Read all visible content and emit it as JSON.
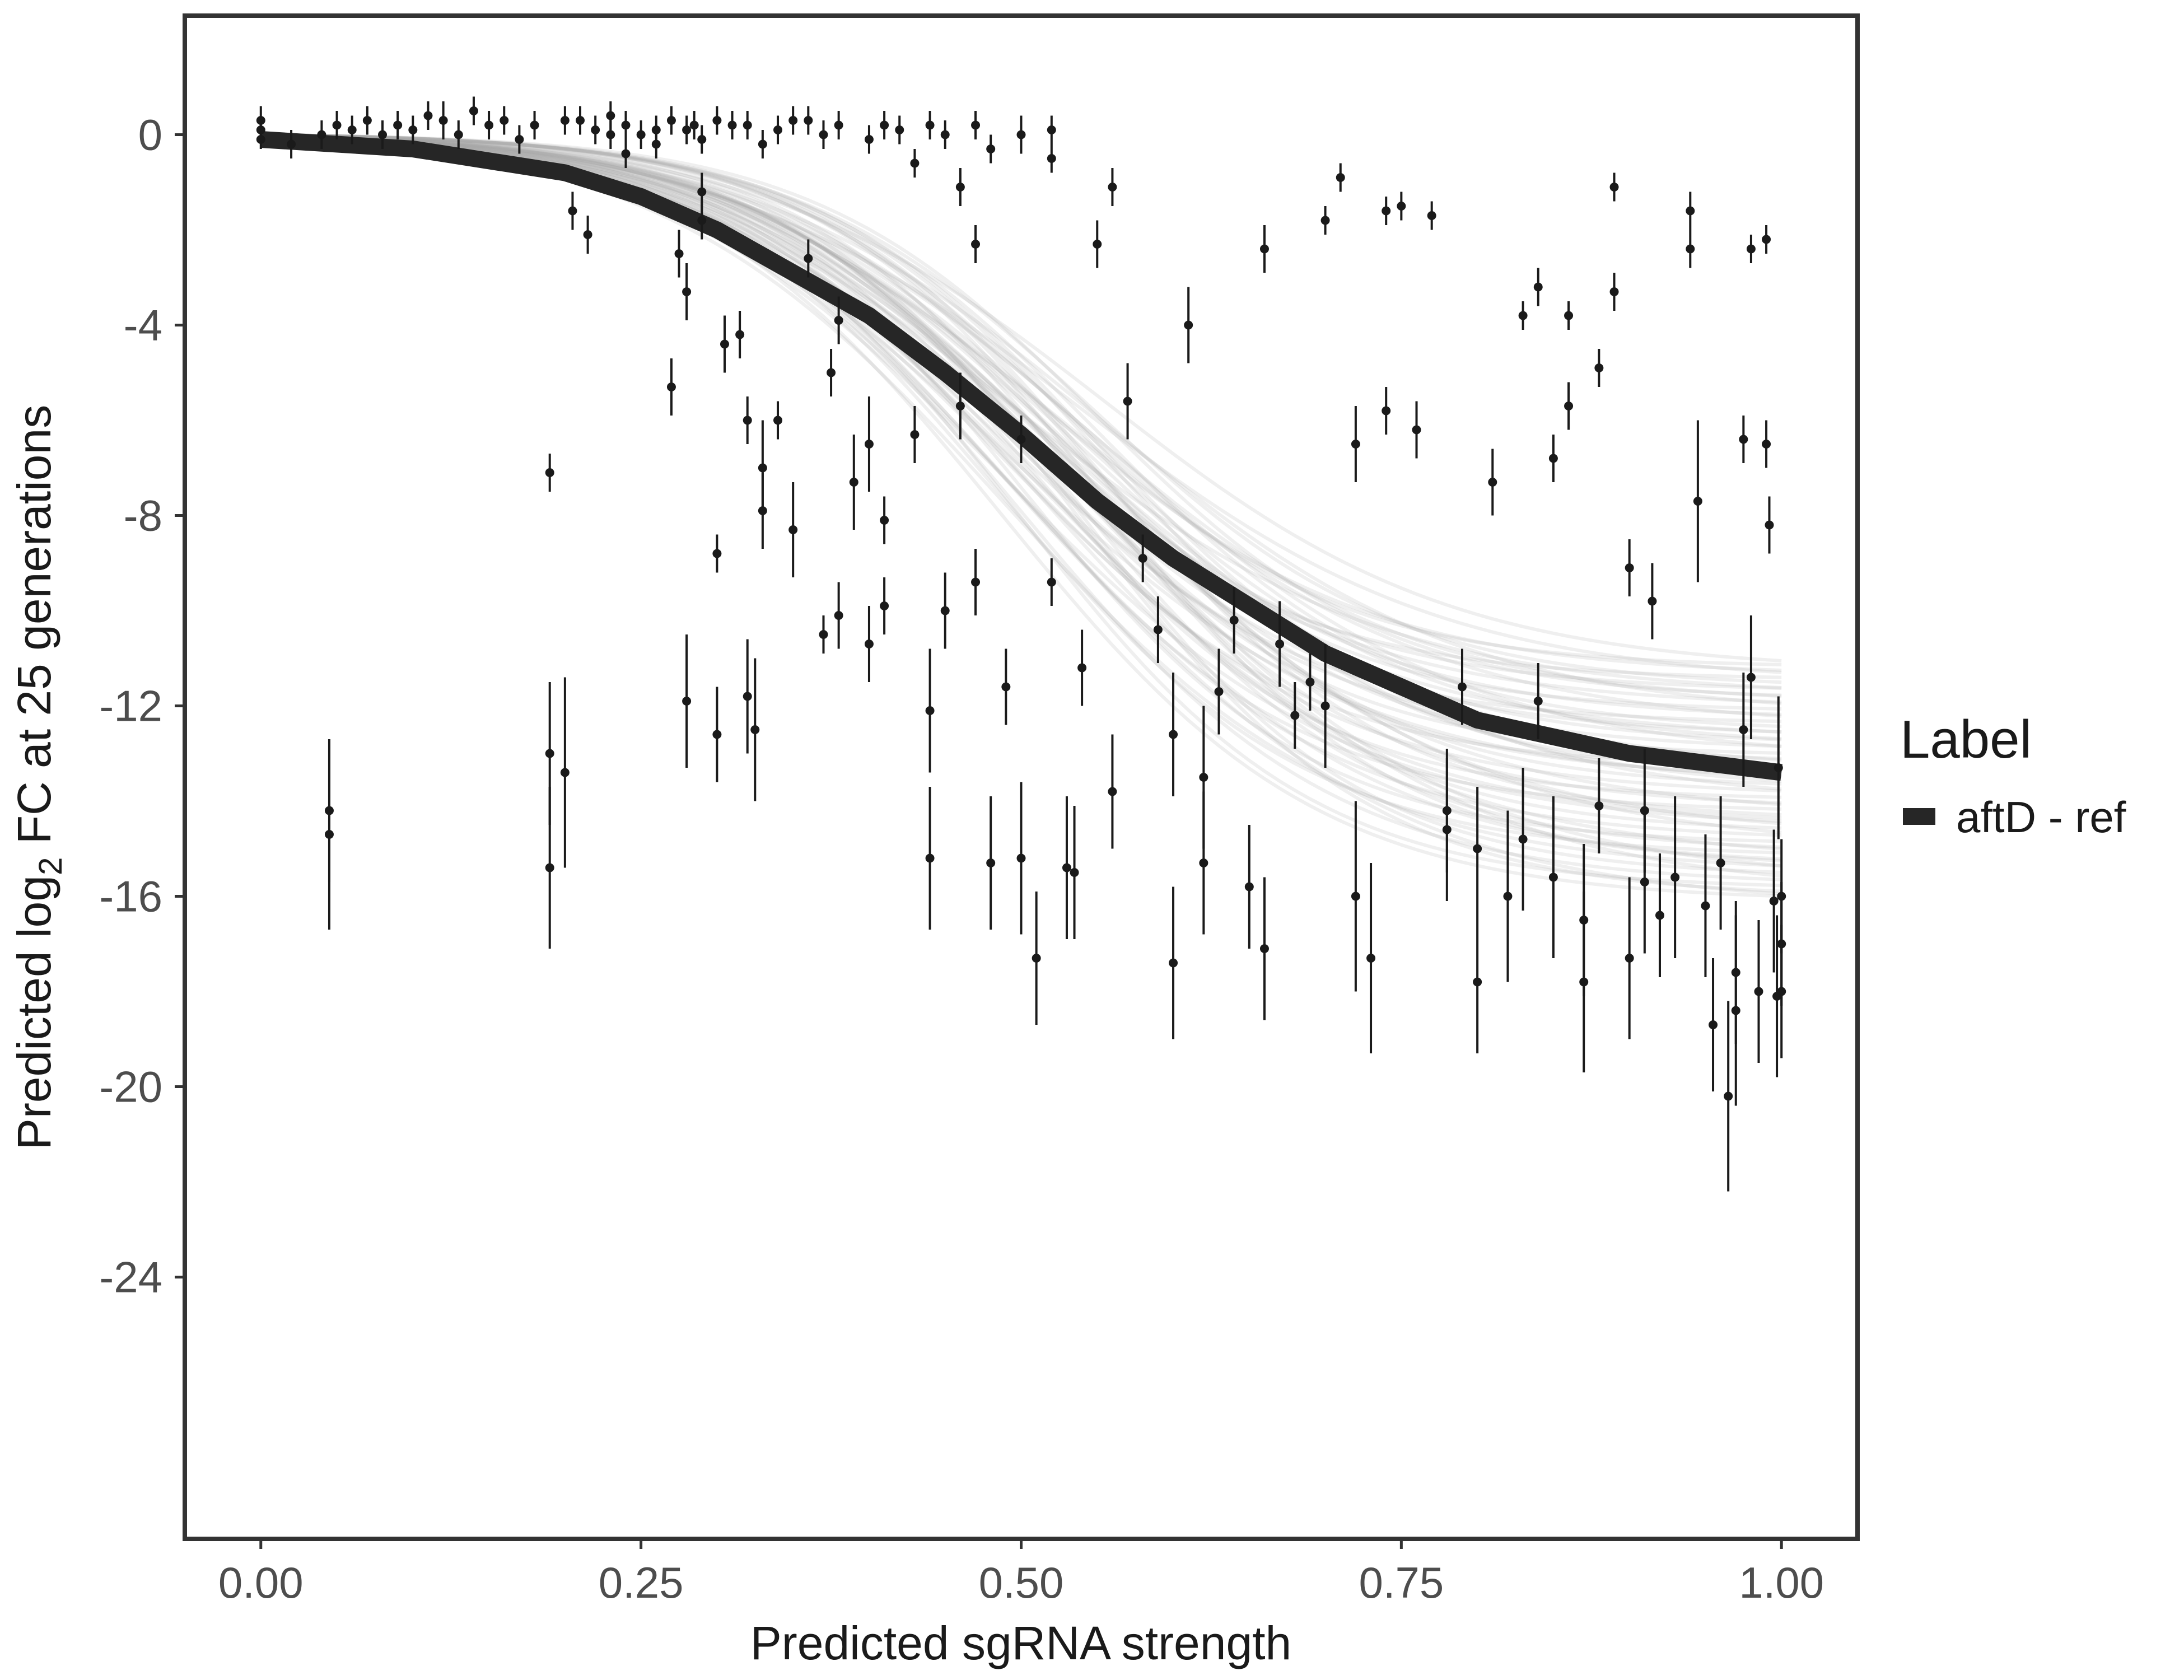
{
  "chart_data": {
    "type": "scatter",
    "title": "",
    "xlabel": "Predicted sgRNA strength",
    "ylabel_parts": {
      "prefix": "Predicted  log",
      "subscript": "2",
      "suffix": " FC at 25 generations"
    },
    "xlim": [
      -0.05,
      1.05
    ],
    "ylim": [
      -29.5,
      2.5
    ],
    "x_ticks": [
      0,
      0.25,
      0.5,
      0.75,
      1.0
    ],
    "x_tick_labels": [
      "0.00",
      "0.25",
      "0.50",
      "0.75",
      "1.00"
    ],
    "y_ticks": [
      0,
      -4,
      -8,
      -12,
      -16,
      -20,
      -24
    ],
    "y_tick_labels": [
      "0",
      "-4",
      "-8",
      "-12",
      "-16",
      "-20",
      "-24"
    ],
    "grid": false,
    "legend": {
      "title": "Label",
      "position": "right",
      "entries": [
        {
          "label": "aftD - ref",
          "color": "#262626"
        }
      ]
    },
    "fit_curve": {
      "name": "aftD - ref",
      "model": "logistic",
      "bottom": -13.9,
      "midpoint": 0.52,
      "slope": 9.5,
      "x": [
        0.0,
        0.1,
        0.2,
        0.25,
        0.3,
        0.4,
        0.45,
        0.5,
        0.55,
        0.6,
        0.7,
        0.75,
        0.8,
        0.9,
        1.0
      ],
      "y": [
        -0.1,
        -0.3,
        -0.8,
        -1.3,
        -2.0,
        -3.8,
        -5.0,
        -6.3,
        -7.7,
        -8.9,
        -10.9,
        -11.6,
        -12.3,
        -13.0,
        -13.4
      ]
    },
    "posterior_band": {
      "n_draws": 60,
      "bottom_range": [
        -11.2,
        -16.2
      ],
      "color": "#a6a6a6"
    },
    "points": [
      {
        "x": 0.0,
        "y": 0.3,
        "e": 0.3
      },
      {
        "x": 0.0,
        "y": 0.1,
        "e": 0.2
      },
      {
        "x": 0.0,
        "y": -0.1,
        "e": 0.2
      },
      {
        "x": 0.02,
        "y": -0.2,
        "e": 0.3
      },
      {
        "x": 0.04,
        "y": 0.0,
        "e": 0.3
      },
      {
        "x": 0.045,
        "y": -14.2,
        "e": 1.5
      },
      {
        "x": 0.045,
        "y": -14.7,
        "e": 2.0
      },
      {
        "x": 0.05,
        "y": 0.2,
        "e": 0.3
      },
      {
        "x": 0.06,
        "y": 0.1,
        "e": 0.3
      },
      {
        "x": 0.07,
        "y": 0.3,
        "e": 0.3
      },
      {
        "x": 0.08,
        "y": 0.0,
        "e": 0.3
      },
      {
        "x": 0.09,
        "y": 0.2,
        "e": 0.3
      },
      {
        "x": 0.1,
        "y": 0.1,
        "e": 0.3
      },
      {
        "x": 0.11,
        "y": 0.4,
        "e": 0.3
      },
      {
        "x": 0.12,
        "y": 0.3,
        "e": 0.4
      },
      {
        "x": 0.13,
        "y": 0.0,
        "e": 0.3
      },
      {
        "x": 0.14,
        "y": 0.5,
        "e": 0.3
      },
      {
        "x": 0.15,
        "y": 0.2,
        "e": 0.3
      },
      {
        "x": 0.16,
        "y": 0.3,
        "e": 0.3
      },
      {
        "x": 0.17,
        "y": -0.1,
        "e": 0.3
      },
      {
        "x": 0.18,
        "y": 0.2,
        "e": 0.3
      },
      {
        "x": 0.19,
        "y": -7.1,
        "e": 0.4
      },
      {
        "x": 0.19,
        "y": -13.0,
        "e": 1.5
      },
      {
        "x": 0.19,
        "y": -15.4,
        "e": 1.7
      },
      {
        "x": 0.2,
        "y": -13.4,
        "e": 2.0
      },
      {
        "x": 0.2,
        "y": 0.3,
        "e": 0.3
      },
      {
        "x": 0.205,
        "y": -1.6,
        "e": 0.4
      },
      {
        "x": 0.21,
        "y": 0.3,
        "e": 0.3
      },
      {
        "x": 0.215,
        "y": -2.1,
        "e": 0.4
      },
      {
        "x": 0.22,
        "y": 0.1,
        "e": 0.3
      },
      {
        "x": 0.23,
        "y": 0.4,
        "e": 0.3
      },
      {
        "x": 0.24,
        "y": -0.4,
        "e": 0.3
      },
      {
        "x": 0.26,
        "y": 0.1,
        "e": 0.3
      },
      {
        "x": 0.27,
        "y": -5.3,
        "e": 0.6
      },
      {
        "x": 0.275,
        "y": -2.5,
        "e": 0.5
      },
      {
        "x": 0.28,
        "y": -3.3,
        "e": 0.6
      },
      {
        "x": 0.28,
        "y": -11.9,
        "e": 1.4
      },
      {
        "x": 0.285,
        "y": 0.2,
        "e": 0.3
      },
      {
        "x": 0.29,
        "y": -1.2,
        "e": 0.4
      },
      {
        "x": 0.29,
        "y": -1.8,
        "e": 0.4
      },
      {
        "x": 0.3,
        "y": -8.8,
        "e": 0.4
      },
      {
        "x": 0.3,
        "y": -12.6,
        "e": 1.0
      },
      {
        "x": 0.305,
        "y": -4.4,
        "e": 0.6
      },
      {
        "x": 0.31,
        "y": 0.2,
        "e": 0.3
      },
      {
        "x": 0.315,
        "y": -4.2,
        "e": 0.5
      },
      {
        "x": 0.32,
        "y": -6.0,
        "e": 0.5
      },
      {
        "x": 0.32,
        "y": -11.8,
        "e": 1.2
      },
      {
        "x": 0.325,
        "y": -12.5,
        "e": 1.5
      },
      {
        "x": 0.33,
        "y": -7.0,
        "e": 1.0
      },
      {
        "x": 0.33,
        "y": -7.9,
        "e": 0.8
      },
      {
        "x": 0.34,
        "y": -6.0,
        "e": 0.4
      },
      {
        "x": 0.35,
        "y": -8.3,
        "e": 1.0
      },
      {
        "x": 0.36,
        "y": 0.3,
        "e": 0.3
      },
      {
        "x": 0.36,
        "y": -2.6,
        "e": 0.4
      },
      {
        "x": 0.37,
        "y": -10.5,
        "e": 0.4
      },
      {
        "x": 0.375,
        "y": -5.0,
        "e": 0.5
      },
      {
        "x": 0.38,
        "y": -3.9,
        "e": 0.5
      },
      {
        "x": 0.38,
        "y": -10.1,
        "e": 0.7
      },
      {
        "x": 0.39,
        "y": -7.3,
        "e": 1.0
      },
      {
        "x": 0.4,
        "y": -6.5,
        "e": 1.0
      },
      {
        "x": 0.4,
        "y": -10.7,
        "e": 0.8
      },
      {
        "x": 0.41,
        "y": -8.1,
        "e": 0.5
      },
      {
        "x": 0.41,
        "y": -9.9,
        "e": 0.6
      },
      {
        "x": 0.42,
        "y": 0.1,
        "e": 0.3
      },
      {
        "x": 0.43,
        "y": -6.3,
        "e": 0.6
      },
      {
        "x": 0.44,
        "y": -12.1,
        "e": 1.3
      },
      {
        "x": 0.44,
        "y": -15.2,
        "e": 1.5
      },
      {
        "x": 0.45,
        "y": -10.0,
        "e": 0.8
      },
      {
        "x": 0.46,
        "y": -1.1,
        "e": 0.4
      },
      {
        "x": 0.46,
        "y": -5.7,
        "e": 0.7
      },
      {
        "x": 0.47,
        "y": -2.3,
        "e": 0.4
      },
      {
        "x": 0.47,
        "y": -9.4,
        "e": 0.7
      },
      {
        "x": 0.48,
        "y": -15.3,
        "e": 1.4
      },
      {
        "x": 0.49,
        "y": -11.6,
        "e": 0.8
      },
      {
        "x": 0.5,
        "y": -6.4,
        "e": 0.5
      },
      {
        "x": 0.5,
        "y": -15.2,
        "e": 1.6
      },
      {
        "x": 0.51,
        "y": -17.3,
        "e": 1.4
      },
      {
        "x": 0.52,
        "y": -9.4,
        "e": 0.5
      },
      {
        "x": 0.52,
        "y": 0.1,
        "e": 0.3
      },
      {
        "x": 0.53,
        "y": -15.4,
        "e": 1.5
      },
      {
        "x": 0.535,
        "y": -15.5,
        "e": 1.4
      },
      {
        "x": 0.54,
        "y": -11.2,
        "e": 0.8
      },
      {
        "x": 0.55,
        "y": -2.3,
        "e": 0.5
      },
      {
        "x": 0.56,
        "y": -1.1,
        "e": 0.4
      },
      {
        "x": 0.56,
        "y": -13.8,
        "e": 1.2
      },
      {
        "x": 0.57,
        "y": -5.6,
        "e": 0.8
      },
      {
        "x": 0.58,
        "y": -8.9,
        "e": 0.5
      },
      {
        "x": 0.59,
        "y": -10.4,
        "e": 0.7
      },
      {
        "x": 0.6,
        "y": -12.6,
        "e": 1.3
      },
      {
        "x": 0.6,
        "y": -17.4,
        "e": 1.6
      },
      {
        "x": 0.61,
        "y": -4.0,
        "e": 0.8
      },
      {
        "x": 0.62,
        "y": -13.5,
        "e": 1.5
      },
      {
        "x": 0.62,
        "y": -15.3,
        "e": 1.5
      },
      {
        "x": 0.63,
        "y": -11.7,
        "e": 0.9
      },
      {
        "x": 0.64,
        "y": -10.2,
        "e": 0.7
      },
      {
        "x": 0.65,
        "y": -15.8,
        "e": 1.3
      },
      {
        "x": 0.66,
        "y": -2.4,
        "e": 0.5
      },
      {
        "x": 0.66,
        "y": -17.1,
        "e": 1.5
      },
      {
        "x": 0.67,
        "y": -10.7,
        "e": 0.9
      },
      {
        "x": 0.68,
        "y": -12.2,
        "e": 0.7
      },
      {
        "x": 0.69,
        "y": -11.5,
        "e": 0.6
      },
      {
        "x": 0.7,
        "y": -1.8,
        "e": 0.3
      },
      {
        "x": 0.7,
        "y": -12.0,
        "e": 1.3
      },
      {
        "x": 0.71,
        "y": -0.9,
        "e": 0.3
      },
      {
        "x": 0.72,
        "y": -6.5,
        "e": 0.8
      },
      {
        "x": 0.72,
        "y": -16.0,
        "e": 2.0
      },
      {
        "x": 0.73,
        "y": -17.3,
        "e": 2.0
      },
      {
        "x": 0.74,
        "y": -5.8,
        "e": 0.5
      },
      {
        "x": 0.74,
        "y": -1.6,
        "e": 0.3
      },
      {
        "x": 0.75,
        "y": -1.5,
        "e": 0.3
      },
      {
        "x": 0.76,
        "y": -6.2,
        "e": 0.6
      },
      {
        "x": 0.77,
        "y": -1.7,
        "e": 0.3
      },
      {
        "x": 0.78,
        "y": -14.2,
        "e": 1.3
      },
      {
        "x": 0.78,
        "y": -14.6,
        "e": 1.5
      },
      {
        "x": 0.79,
        "y": -11.6,
        "e": 0.8
      },
      {
        "x": 0.8,
        "y": -15.0,
        "e": 1.3
      },
      {
        "x": 0.8,
        "y": -17.8,
        "e": 1.5
      },
      {
        "x": 0.81,
        "y": -7.3,
        "e": 0.7
      },
      {
        "x": 0.82,
        "y": -16.0,
        "e": 1.8
      },
      {
        "x": 0.83,
        "y": -3.8,
        "e": 0.3
      },
      {
        "x": 0.83,
        "y": -14.8,
        "e": 1.5
      },
      {
        "x": 0.84,
        "y": -3.2,
        "e": 0.4
      },
      {
        "x": 0.84,
        "y": -11.9,
        "e": 0.8
      },
      {
        "x": 0.85,
        "y": -6.8,
        "e": 0.5
      },
      {
        "x": 0.85,
        "y": -15.6,
        "e": 1.7
      },
      {
        "x": 0.86,
        "y": -3.8,
        "e": 0.3
      },
      {
        "x": 0.86,
        "y": -5.7,
        "e": 0.5
      },
      {
        "x": 0.87,
        "y": -16.5,
        "e": 1.6
      },
      {
        "x": 0.87,
        "y": -17.8,
        "e": 1.9
      },
      {
        "x": 0.88,
        "y": -4.9,
        "e": 0.4
      },
      {
        "x": 0.88,
        "y": -14.1,
        "e": 1.0
      },
      {
        "x": 0.89,
        "y": -1.1,
        "e": 0.3
      },
      {
        "x": 0.89,
        "y": -3.3,
        "e": 0.4
      },
      {
        "x": 0.9,
        "y": -9.1,
        "e": 0.6
      },
      {
        "x": 0.9,
        "y": -17.3,
        "e": 1.7
      },
      {
        "x": 0.91,
        "y": -14.2,
        "e": 1.3
      },
      {
        "x": 0.91,
        "y": -15.7,
        "e": 1.5
      },
      {
        "x": 0.915,
        "y": -9.8,
        "e": 0.8
      },
      {
        "x": 0.92,
        "y": -16.4,
        "e": 1.3
      },
      {
        "x": 0.93,
        "y": -15.6,
        "e": 1.7
      },
      {
        "x": 0.94,
        "y": -1.6,
        "e": 0.4
      },
      {
        "x": 0.94,
        "y": -2.4,
        "e": 0.4
      },
      {
        "x": 0.945,
        "y": -7.7,
        "e": 1.7
      },
      {
        "x": 0.95,
        "y": -16.2,
        "e": 1.5
      },
      {
        "x": 0.955,
        "y": -18.7,
        "e": 1.4
      },
      {
        "x": 0.96,
        "y": -15.3,
        "e": 1.4
      },
      {
        "x": 0.965,
        "y": -20.2,
        "e": 2.0
      },
      {
        "x": 0.97,
        "y": -18.4,
        "e": 2.0
      },
      {
        "x": 0.97,
        "y": -17.6,
        "e": 1.5
      },
      {
        "x": 0.975,
        "y": -6.4,
        "e": 0.5
      },
      {
        "x": 0.975,
        "y": -12.5,
        "e": 1.2
      },
      {
        "x": 0.98,
        "y": -2.4,
        "e": 0.3
      },
      {
        "x": 0.98,
        "y": -11.4,
        "e": 1.3
      },
      {
        "x": 0.985,
        "y": -18.0,
        "e": 1.5
      },
      {
        "x": 0.99,
        "y": -6.5,
        "e": 0.5
      },
      {
        "x": 0.99,
        "y": -2.2,
        "e": 0.3
      },
      {
        "x": 0.992,
        "y": -8.2,
        "e": 0.6
      },
      {
        "x": 0.995,
        "y": -16.1,
        "e": 1.5
      },
      {
        "x": 0.997,
        "y": -18.1,
        "e": 1.7
      },
      {
        "x": 0.998,
        "y": -13.3,
        "e": 1.5
      },
      {
        "x": 1.0,
        "y": -17.0,
        "e": 1.3
      },
      {
        "x": 1.0,
        "y": -18.0,
        "e": 1.4
      },
      {
        "x": 1.0,
        "y": -16.0,
        "e": 1.2
      },
      {
        "x": 0.52,
        "y": -0.5,
        "e": 0.3
      },
      {
        "x": 0.5,
        "y": 0.0,
        "e": 0.4
      },
      {
        "x": 0.48,
        "y": -0.3,
        "e": 0.3
      },
      {
        "x": 0.47,
        "y": 0.2,
        "e": 0.3
      },
      {
        "x": 0.45,
        "y": 0.0,
        "e": 0.3
      },
      {
        "x": 0.44,
        "y": 0.2,
        "e": 0.3
      },
      {
        "x": 0.43,
        "y": -0.6,
        "e": 0.3
      },
      {
        "x": 0.41,
        "y": 0.2,
        "e": 0.3
      },
      {
        "x": 0.4,
        "y": -0.1,
        "e": 0.3
      },
      {
        "x": 0.38,
        "y": 0.2,
        "e": 0.3
      },
      {
        "x": 0.37,
        "y": 0.0,
        "e": 0.3
      },
      {
        "x": 0.35,
        "y": 0.3,
        "e": 0.3
      },
      {
        "x": 0.34,
        "y": 0.1,
        "e": 0.3
      },
      {
        "x": 0.33,
        "y": -0.2,
        "e": 0.3
      },
      {
        "x": 0.32,
        "y": 0.2,
        "e": 0.3
      },
      {
        "x": 0.3,
        "y": 0.3,
        "e": 0.3
      },
      {
        "x": 0.29,
        "y": -0.1,
        "e": 0.3
      },
      {
        "x": 0.28,
        "y": 0.1,
        "e": 0.3
      },
      {
        "x": 0.27,
        "y": 0.3,
        "e": 0.3
      },
      {
        "x": 0.26,
        "y": -0.2,
        "e": 0.3
      },
      {
        "x": 0.25,
        "y": 0.0,
        "e": 0.3
      },
      {
        "x": 0.24,
        "y": 0.2,
        "e": 0.3
      },
      {
        "x": 0.23,
        "y": 0.0,
        "e": 0.3
      }
    ]
  }
}
